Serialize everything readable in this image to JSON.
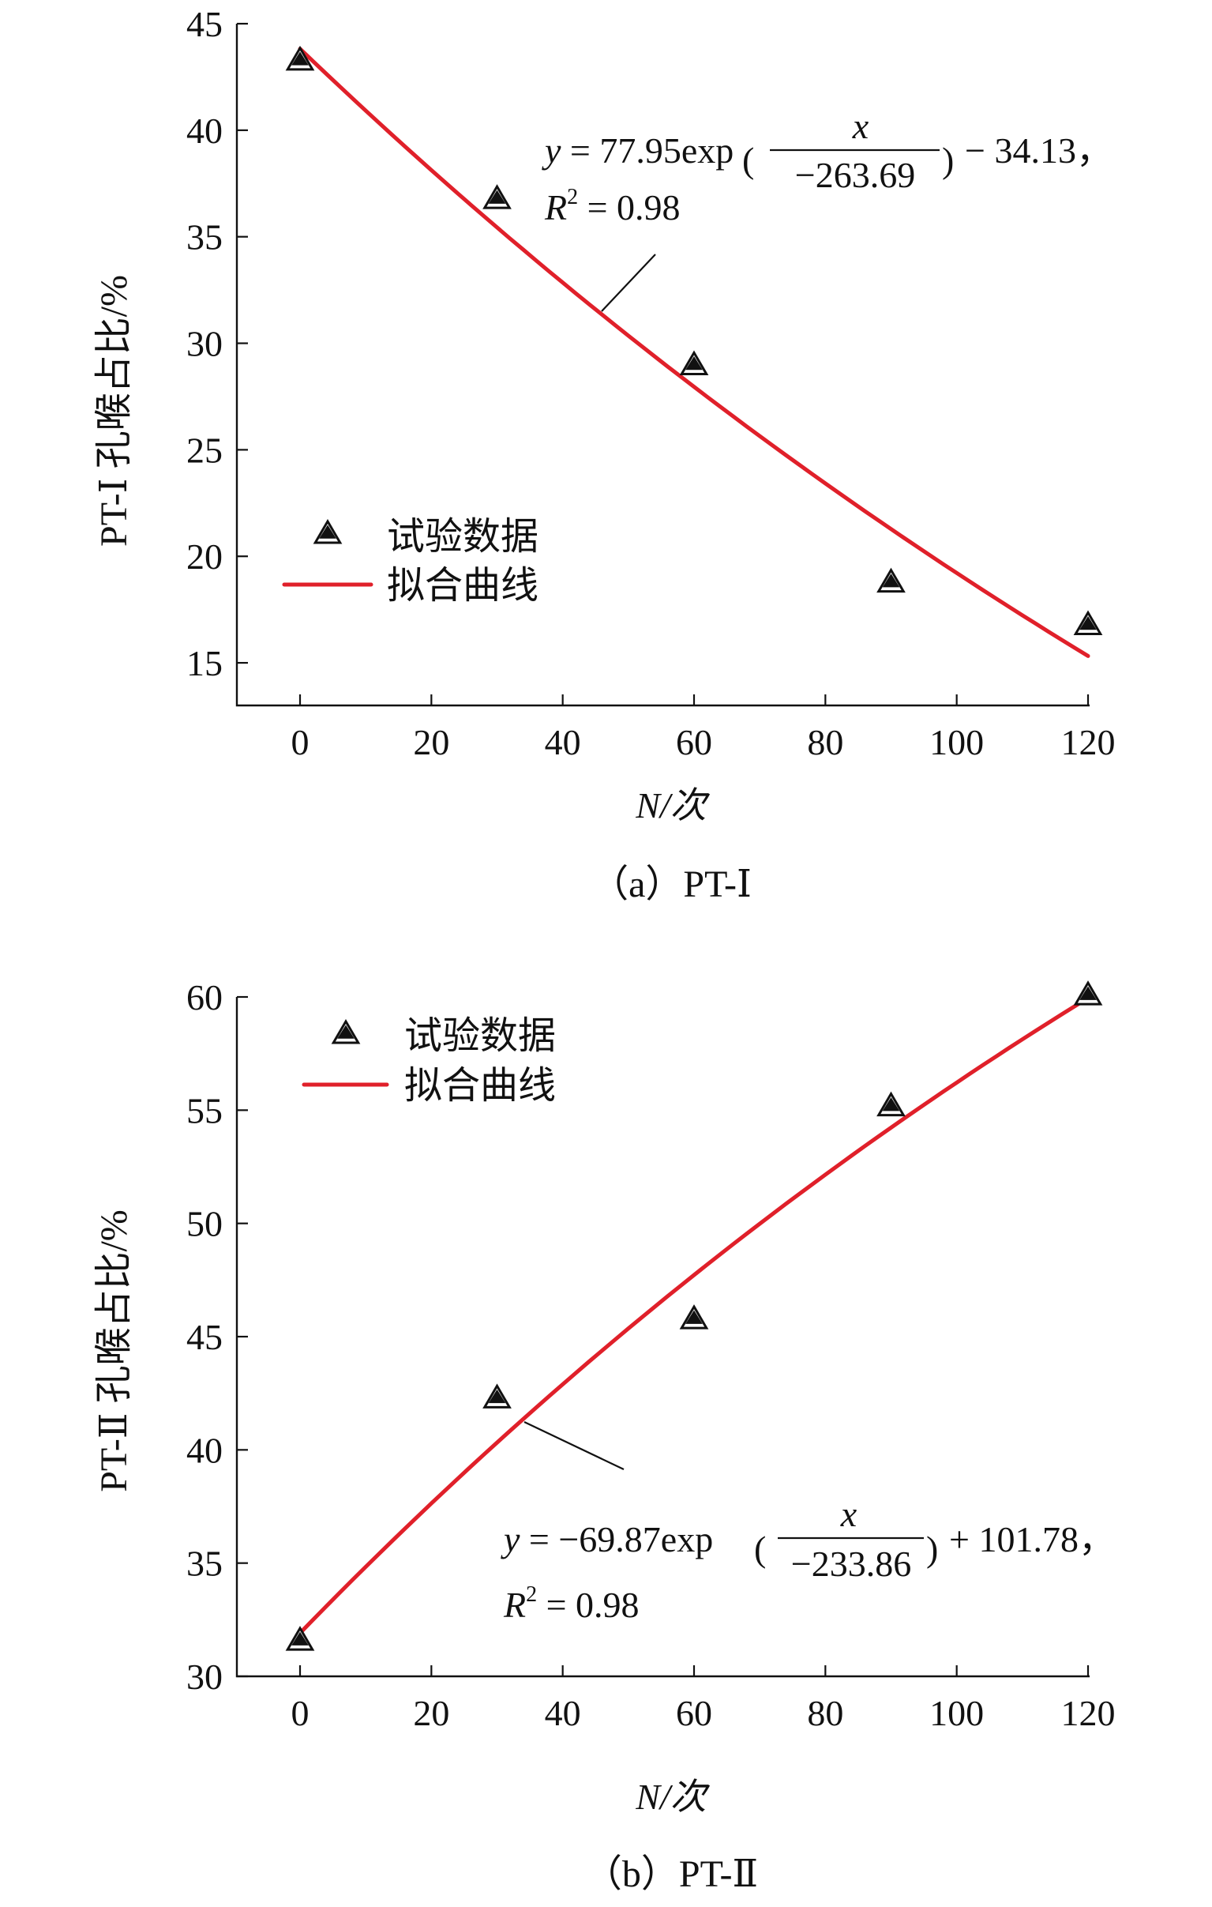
{
  "colors": {
    "fit_line": "#e0202a",
    "axis": "#111111",
    "marker_fill": "#111111"
  },
  "chart_data": [
    {
      "type": "scatter",
      "caption": "（a）PT-Ⅰ",
      "xlabel": "N/次",
      "ylabel": "PT-Ⅰ 孔喉占比/%",
      "xlim": [
        -10,
        120
      ],
      "ylim": [
        13,
        45
      ],
      "xticks": [
        0,
        20,
        40,
        60,
        80,
        100,
        120
      ],
      "yticks": [
        15,
        20,
        25,
        30,
        35,
        40,
        45
      ],
      "grid": false,
      "legend_position": "center-left",
      "legend": {
        "points": "试验数据",
        "line": "拟合曲线"
      },
      "series": [
        {
          "name": "试验数据",
          "kind": "scatter",
          "x": [
            0,
            30,
            60,
            90,
            120
          ],
          "y": [
            43.3,
            36.8,
            29.0,
            18.8,
            16.8
          ]
        },
        {
          "name": "拟合曲线",
          "kind": "line",
          "formula": {
            "a": 77.95,
            "b": -263.69,
            "c": -34.13
          }
        }
      ],
      "equation": {
        "lhs": "y",
        "eq1": " = 77.95exp",
        "num": "x",
        "den": "−263.69",
        "tail": " − 34.13，",
        "r2_symbol": "R",
        "r2_sup": "2",
        "r2_value": " = 0.98"
      }
    },
    {
      "type": "scatter",
      "caption": "（b）PT-Ⅱ",
      "xlabel": "N/次",
      "ylabel": "PT-Ⅱ 孔喉占比/%",
      "xlim": [
        -10,
        120
      ],
      "ylim": [
        30,
        60
      ],
      "xticks": [
        0,
        20,
        40,
        60,
        80,
        100,
        120
      ],
      "yticks": [
        30,
        35,
        40,
        45,
        50,
        55,
        60
      ],
      "grid": false,
      "legend_position": "top-left",
      "legend": {
        "points": "试验数据",
        "line": "拟合曲线"
      },
      "series": [
        {
          "name": "试验数据",
          "kind": "scatter",
          "x": [
            0,
            30,
            60,
            90,
            120
          ],
          "y": [
            31.6,
            42.3,
            45.8,
            55.2,
            60.1
          ]
        },
        {
          "name": "拟合曲线",
          "kind": "line",
          "formula": {
            "a": -69.87,
            "b": -233.86,
            "c": 101.78
          }
        }
      ],
      "equation": {
        "lhs": "y",
        "eq1": " = −69.87exp",
        "num": "x",
        "den": "−233.86",
        "tail": " + 101.78，",
        "r2_symbol": "R",
        "r2_sup": "2",
        "r2_value": " = 0.98"
      }
    }
  ]
}
